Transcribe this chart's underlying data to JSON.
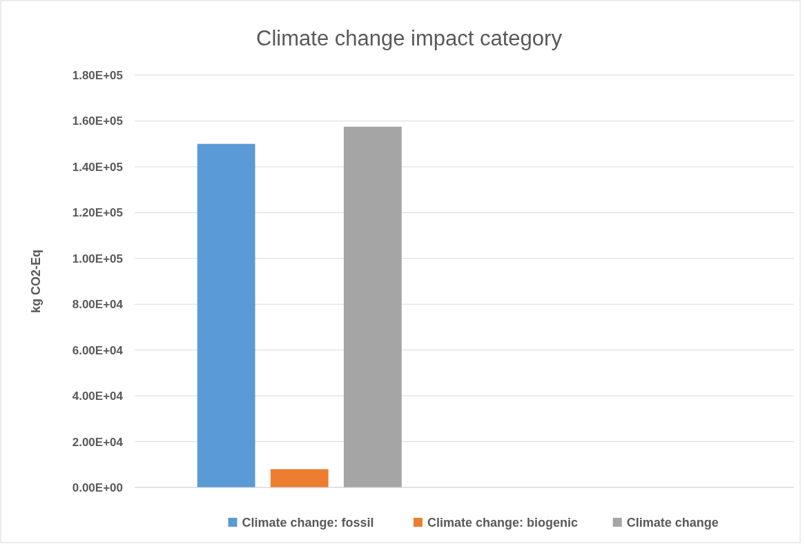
{
  "chart_data": {
    "type": "bar",
    "title": "Climate change impact category",
    "ylabel": "kg CO2-Eq",
    "categories": [
      null,
      null
    ],
    "series": [
      {
        "name": "Climate change: fossil",
        "color": "#5b9bd5",
        "values": [
          150000,
          null
        ]
      },
      {
        "name": "Climate change: biogenic",
        "color": "#ed7d31",
        "values": [
          8000,
          null
        ]
      },
      {
        "name": "Climate change",
        "color": "#a5a5a5",
        "values": [
          157500,
          null
        ]
      }
    ],
    "ylim": [
      0,
      180000
    ],
    "yticks": [
      {
        "value": 0,
        "label": "0.00E+00"
      },
      {
        "value": 20000,
        "label": "2.00E+04"
      },
      {
        "value": 40000,
        "label": "4.00E+04"
      },
      {
        "value": 60000,
        "label": "6.00E+04"
      },
      {
        "value": 80000,
        "label": "8.00E+04"
      },
      {
        "value": 100000,
        "label": "1.00E+05"
      },
      {
        "value": 120000,
        "label": "1.20E+05"
      },
      {
        "value": 140000,
        "label": "1.40E+05"
      },
      {
        "value": 160000,
        "label": "1.60E+05"
      },
      {
        "value": 180000,
        "label": "1.80E+05"
      }
    ],
    "grid": "y",
    "legend": "bottom"
  }
}
